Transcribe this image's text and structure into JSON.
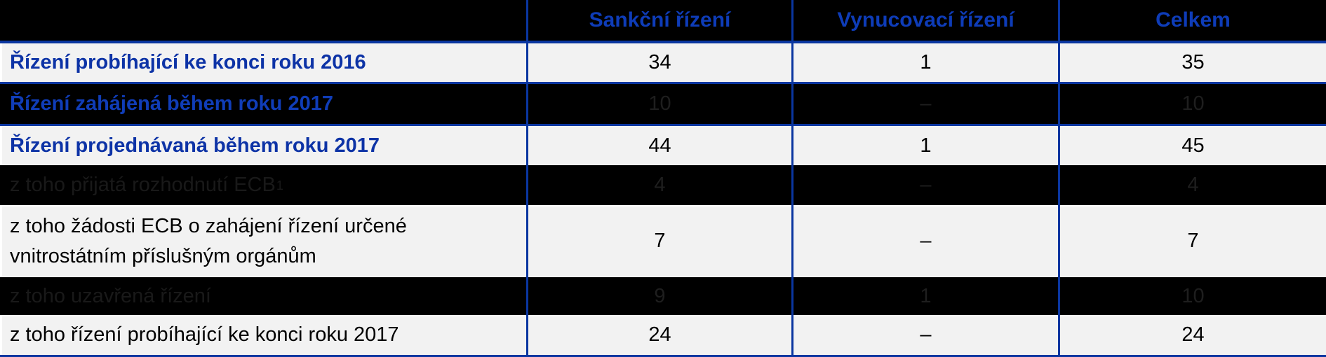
{
  "table": {
    "columns": [
      "",
      "Sankční řízení",
      "Vynucovací řízení",
      "Celkem"
    ],
    "rows": [
      {
        "label": "Řízení probíhající ke konci roku 2016",
        "sup": "",
        "values": [
          "34",
          "1",
          "35"
        ],
        "variant": "light",
        "label_style": "main"
      },
      {
        "label": "Řízení zahájená během roku 2017",
        "sup": "",
        "values": [
          "10",
          "–",
          "10"
        ],
        "variant": "dark",
        "label_style": "main"
      },
      {
        "label": "Řízení projednávaná během roku 2017",
        "sup": "",
        "values": [
          "44",
          "1",
          "45"
        ],
        "variant": "light",
        "label_style": "main"
      },
      {
        "label": "z toho přijatá rozhodnutí ECB",
        "sup": "1",
        "values": [
          "4",
          "–",
          "4"
        ],
        "variant": "dark",
        "label_style": "sub"
      },
      {
        "label": "z toho žádosti ECB o zahájení řízení určené vnitrostátním příslušným orgánům",
        "sup": "",
        "values": [
          "7",
          "–",
          "7"
        ],
        "variant": "light",
        "label_style": "sub"
      },
      {
        "label": "z toho uzavřená řízení",
        "sup": "",
        "values": [
          "9",
          "1",
          "10"
        ],
        "variant": "dark",
        "label_style": "sub"
      },
      {
        "label": "z toho řízení probíhající ke konci roku 2017",
        "sup": "",
        "values": [
          "24",
          "–",
          "24"
        ],
        "variant": "light",
        "label_style": "sub"
      }
    ]
  },
  "chart_data": {
    "type": "table",
    "title": "",
    "columns": [
      "",
      "Sankční řízení",
      "Vynucovací řízení",
      "Celkem"
    ],
    "rows": [
      [
        "Řízení probíhající ke konci roku 2016",
        34,
        1,
        35
      ],
      [
        "Řízení zahájená během roku 2017",
        10,
        null,
        10
      ],
      [
        "Řízení projednávaná během roku 2017",
        44,
        1,
        45
      ],
      [
        "z toho přijatá rozhodnutí ECB¹",
        4,
        null,
        4
      ],
      [
        "z toho žádosti ECB o zahájení řízení určené vnitrostátním příslušným orgánům",
        7,
        null,
        7
      ],
      [
        "z toho uzavřená řízení",
        9,
        1,
        10
      ],
      [
        "z toho řízení probíhající ke konci roku 2017",
        24,
        null,
        24
      ]
    ],
    "notes": "Dashes (–) indicate zero/none; dark rows render their black values nearly invisible on the black background."
  },
  "colors": {
    "background": "#000000",
    "row_light_bg": "#F2F2F2",
    "border_blue": "#0A36A0",
    "header_text_blue": "#0E3CB8",
    "row_label_blue": "#0D33A6",
    "value_text": "#000000",
    "dark_row_faint_text": "#1E1E1E",
    "white_separator": "#FFFFFF"
  }
}
